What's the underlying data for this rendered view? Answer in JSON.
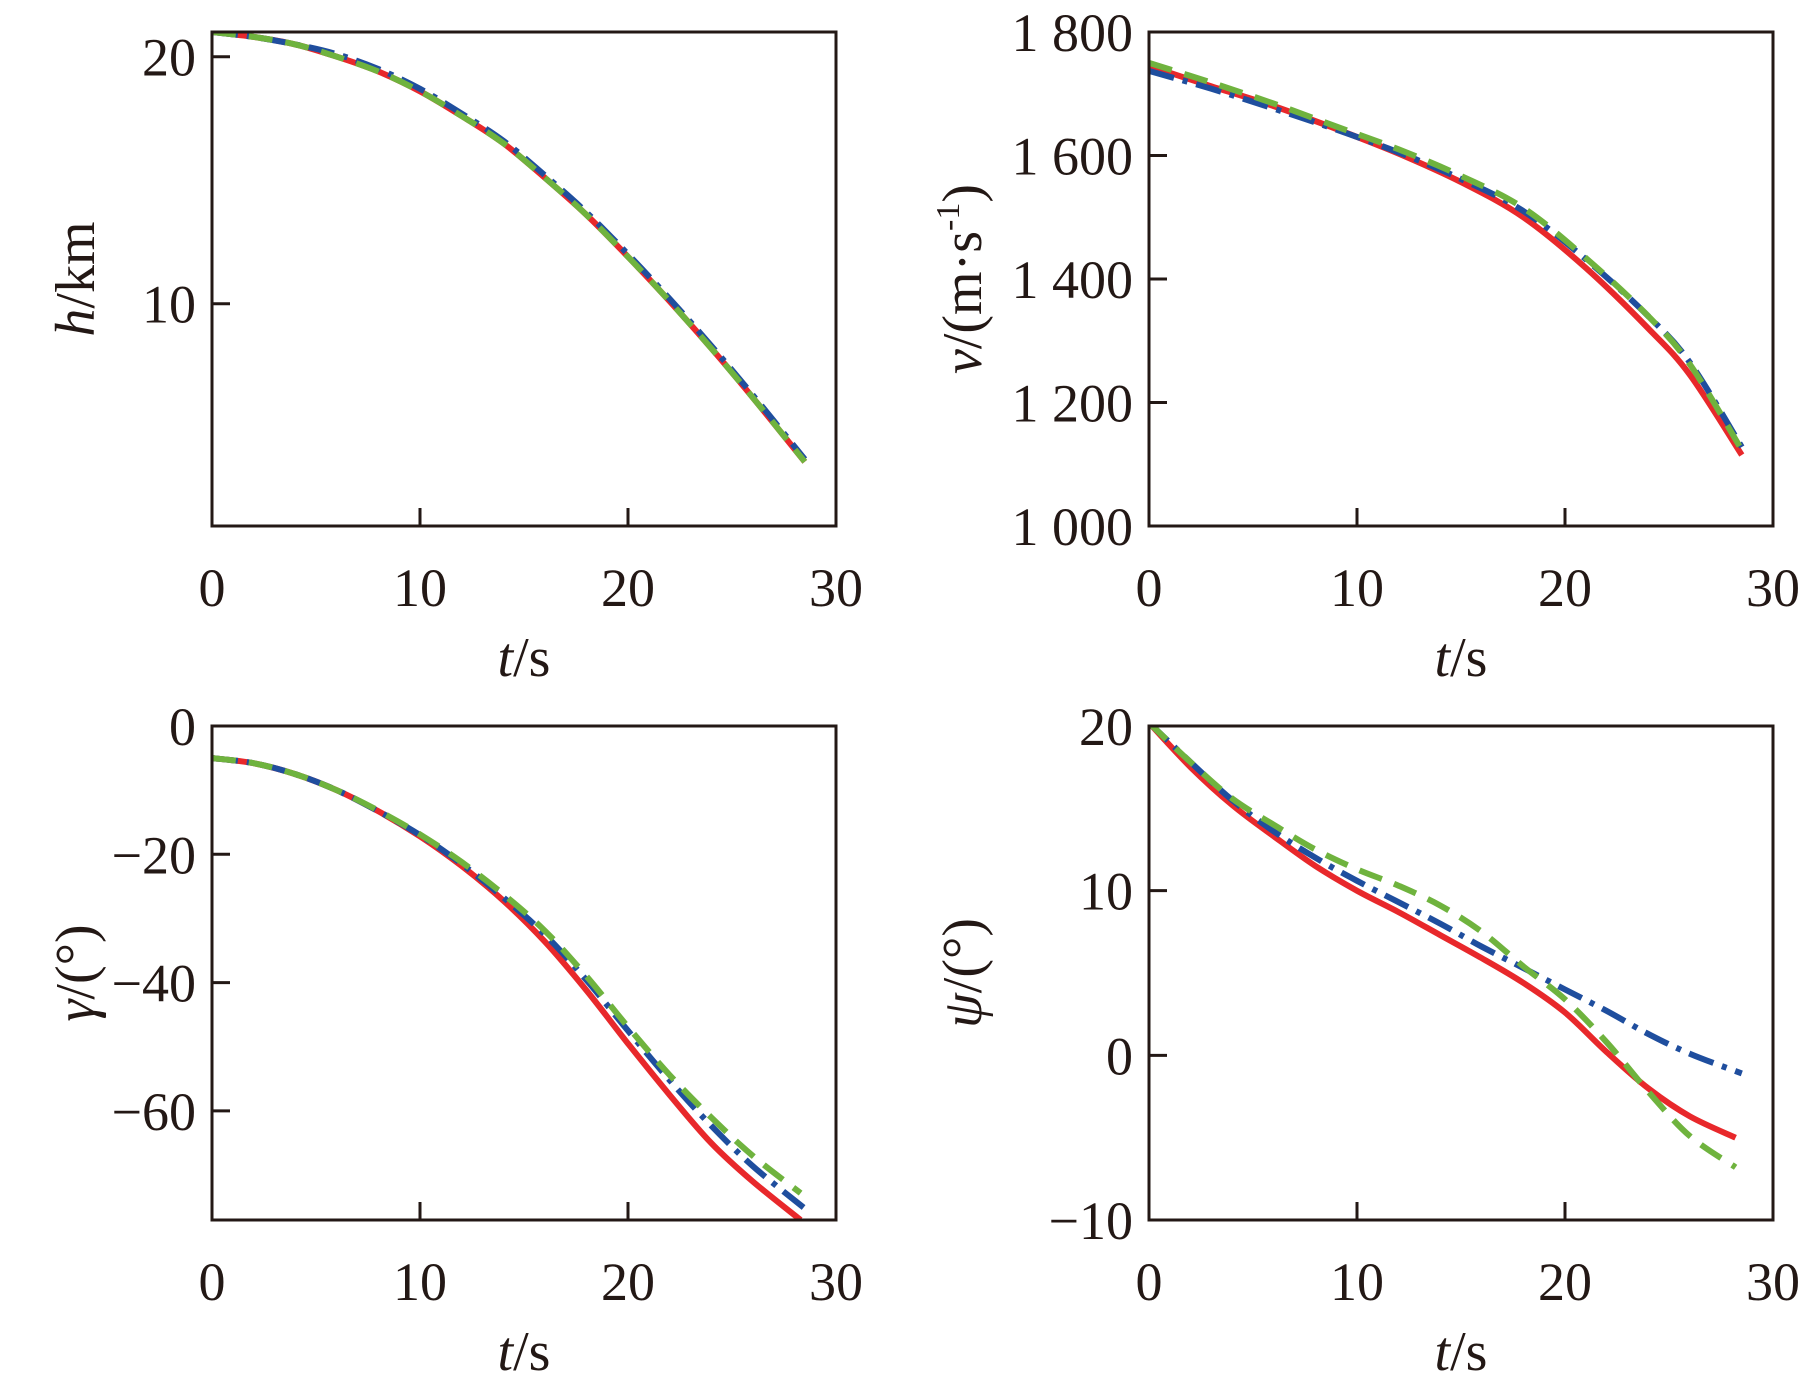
{
  "colors": {
    "red": "#e8282b",
    "blue": "#1f4e9e",
    "green": "#6fb33e",
    "axis": "#231815"
  },
  "chart_data": [
    {
      "type": "line",
      "xlabel": {
        "var": "t",
        "unit": "/s"
      },
      "ylabel": {
        "var": "h",
        "unit": "/km"
      },
      "xlim": [
        0,
        30
      ],
      "ylim": [
        1,
        21
      ],
      "xticks": [
        0,
        10,
        20,
        30
      ],
      "yticks": [
        20,
        10
      ],
      "xtick_labels": [
        "0",
        "10",
        "20",
        "30"
      ],
      "ytick_labels": [
        "20",
        "10"
      ],
      "series": [
        {
          "color": "red",
          "style": "solid",
          "x": [
            0,
            2,
            4,
            6,
            8,
            10,
            12,
            14,
            16,
            18,
            20,
            22,
            24,
            26,
            28.5
          ],
          "y": [
            21.0,
            20.8,
            20.5,
            20.0,
            19.4,
            18.6,
            17.6,
            16.5,
            15.1,
            13.6,
            11.9,
            10.1,
            8.2,
            6.2,
            3.6
          ]
        },
        {
          "color": "blue",
          "style": "dashdot",
          "x": [
            0,
            2,
            4,
            6,
            8,
            10,
            12,
            14,
            16,
            18,
            20,
            22,
            24,
            26,
            28.5
          ],
          "y": [
            21.0,
            20.8,
            20.5,
            20.1,
            19.5,
            18.7,
            17.7,
            16.6,
            15.2,
            13.7,
            12.0,
            10.2,
            8.3,
            6.3,
            3.7
          ]
        },
        {
          "color": "green",
          "style": "dashed",
          "x": [
            0,
            2,
            4,
            6,
            8,
            10,
            12,
            14,
            16,
            18,
            20,
            22,
            24,
            26,
            28.5
          ],
          "y": [
            21.0,
            20.8,
            20.5,
            20.0,
            19.4,
            18.6,
            17.6,
            16.5,
            15.1,
            13.6,
            11.9,
            10.1,
            8.2,
            6.2,
            3.6
          ]
        }
      ]
    },
    {
      "type": "line",
      "xlabel": {
        "var": "t",
        "unit": "/s"
      },
      "ylabel": {
        "var": "v",
        "unit": "/(m·s",
        "sup": "-1",
        "close": ")"
      },
      "xlim": [
        0,
        30
      ],
      "ylim": [
        1000,
        1800
      ],
      "xticks": [
        0,
        10,
        20,
        30
      ],
      "yticks": [
        1000,
        1200,
        1400,
        1600,
        1800
      ],
      "xtick_labels": [
        "0",
        "10",
        "20",
        "30"
      ],
      "ytick_labels": [
        "1 000",
        "1 200",
        "1 400",
        "1 600",
        "1 800"
      ],
      "series": [
        {
          "color": "red",
          "style": "solid",
          "x": [
            0,
            3,
            6,
            9,
            12,
            15,
            18,
            21,
            24,
            26,
            28.5
          ],
          "y": [
            1745,
            1712,
            1680,
            1643,
            1603,
            1557,
            1500,
            1418,
            1320,
            1245,
            1115
          ]
        },
        {
          "color": "blue",
          "style": "dashdot",
          "x": [
            0,
            3,
            6,
            9,
            12,
            15,
            18,
            21,
            24,
            26,
            28.5
          ],
          "y": [
            1737,
            1708,
            1676,
            1642,
            1605,
            1562,
            1510,
            1432,
            1340,
            1265,
            1128
          ]
        },
        {
          "color": "green",
          "style": "dashed",
          "x": [
            0,
            3,
            6,
            9,
            12,
            15,
            18,
            21,
            24,
            26,
            28.5
          ],
          "y": [
            1750,
            1718,
            1684,
            1647,
            1610,
            1567,
            1515,
            1434,
            1340,
            1262,
            1123
          ]
        }
      ]
    },
    {
      "type": "line",
      "xlabel": {
        "var": "t",
        "unit": "/s"
      },
      "ylabel": {
        "var": "γ",
        "unit": "/(°)"
      },
      "xlim": [
        0,
        30
      ],
      "ylim": [
        -77,
        0
      ],
      "xticks": [
        0,
        10,
        20,
        30
      ],
      "yticks": [
        0,
        -20,
        -40,
        -60
      ],
      "xtick_labels": [
        "0",
        "10",
        "20",
        "30"
      ],
      "ytick_labels": [
        "0",
        "−20",
        "−40",
        "−60"
      ],
      "series": [
        {
          "color": "red",
          "style": "solid",
          "x": [
            0,
            2,
            4,
            6,
            8,
            10,
            12,
            14,
            16,
            18,
            20,
            22,
            24,
            26,
            28.3
          ],
          "y": [
            -5.0,
            -5.8,
            -7.5,
            -10.0,
            -13.3,
            -17.2,
            -21.8,
            -27.2,
            -33.6,
            -41.2,
            -49.5,
            -57.5,
            -65.0,
            -71.0,
            -77.0
          ]
        },
        {
          "color": "blue",
          "style": "dashdot",
          "x": [
            0,
            2,
            4,
            6,
            8,
            10,
            12,
            14,
            16,
            18,
            20,
            22,
            24,
            26,
            28.5
          ],
          "y": [
            -5.0,
            -5.8,
            -7.5,
            -10.0,
            -13.3,
            -17.0,
            -21.5,
            -26.7,
            -32.5,
            -39.6,
            -47.5,
            -55.2,
            -62.3,
            -68.6,
            -75.2
          ]
        },
        {
          "color": "green",
          "style": "dashed",
          "x": [
            0,
            2,
            4,
            6,
            8,
            10,
            12,
            14,
            16,
            18,
            20,
            22,
            24,
            26,
            28.3
          ],
          "y": [
            -5.0,
            -5.8,
            -7.5,
            -10.0,
            -13.2,
            -16.9,
            -21.2,
            -26.2,
            -31.9,
            -39.0,
            -46.9,
            -54.4,
            -61.0,
            -67.0,
            -72.8
          ]
        }
      ]
    },
    {
      "type": "line",
      "xlabel": {
        "var": "t",
        "unit": "/s"
      },
      "ylabel": {
        "var": "ψ",
        "unit": "/(°)"
      },
      "xlim": [
        0,
        30
      ],
      "ylim": [
        -10,
        20
      ],
      "xticks": [
        0,
        10,
        20,
        30
      ],
      "yticks": [
        20,
        10,
        0,
        -10
      ],
      "xtick_labels": [
        "0",
        "10",
        "20",
        "30"
      ],
      "ytick_labels": [
        "20",
        "10",
        "0",
        "−10"
      ],
      "series": [
        {
          "color": "red",
          "style": "solid",
          "x": [
            0,
            2,
            4,
            6,
            8,
            10,
            12,
            14,
            16,
            18,
            20,
            22,
            24,
            26,
            28.2
          ],
          "y": [
            20.2,
            17.5,
            15.2,
            13.3,
            11.5,
            10.0,
            8.7,
            7.3,
            5.9,
            4.4,
            2.6,
            0.2,
            -2.0,
            -3.7,
            -5.0
          ]
        },
        {
          "color": "blue",
          "style": "dashdot",
          "x": [
            0,
            2,
            4,
            6,
            8,
            10,
            12,
            14,
            16,
            18,
            20,
            22,
            24,
            26,
            28.5
          ],
          "y": [
            20.2,
            17.8,
            15.5,
            13.6,
            12.0,
            10.6,
            9.3,
            8.0,
            6.6,
            5.3,
            4.0,
            2.7,
            1.3,
            0.1,
            -1.1
          ]
        },
        {
          "color": "green",
          "style": "dashed",
          "x": [
            0,
            2,
            4,
            6,
            8,
            10,
            12,
            14,
            16,
            18,
            20,
            22,
            24,
            26,
            28.2
          ],
          "y": [
            20.2,
            17.8,
            15.6,
            14.0,
            12.5,
            11.3,
            10.3,
            9.1,
            7.5,
            5.4,
            3.4,
            0.8,
            -2.2,
            -4.9,
            -6.8
          ]
        }
      ]
    }
  ]
}
